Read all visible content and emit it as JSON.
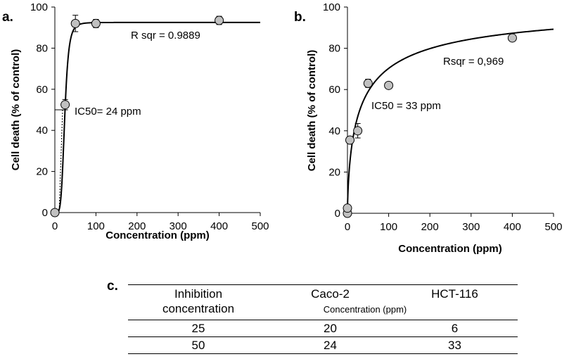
{
  "chart_data": [
    {
      "panel": "a.",
      "type": "scatter",
      "xlabel": "Concentration (ppm)",
      "ylabel": "Cell death (% of control)",
      "xlim": [
        0,
        500
      ],
      "ylim": [
        0,
        100
      ],
      "xticks": [
        0,
        100,
        200,
        300,
        400,
        500
      ],
      "yticks": [
        0,
        20,
        40,
        60,
        80,
        100
      ],
      "points": [
        {
          "x": 0,
          "y": 0,
          "err": 0
        },
        {
          "x": 25,
          "y": 52.5,
          "err": 2.5
        },
        {
          "x": 50,
          "y": 92,
          "err": 4
        },
        {
          "x": 100,
          "y": 92,
          "err": 2
        },
        {
          "x": 400,
          "y": 93.5,
          "err": 2
        }
      ],
      "fit": {
        "model": "sigmoid",
        "top": 92.5,
        "ic50": 24,
        "hill": 5
      },
      "annotations": {
        "rsq": "R sqr = 0.9889",
        "ic50": "IC50= 24 ppm"
      }
    },
    {
      "panel": "b.",
      "type": "scatter",
      "xlabel": "Concentration (ppm)",
      "ylabel": "Cell death (% of control)",
      "xlim": [
        0,
        500
      ],
      "ylim": [
        0,
        100
      ],
      "xticks": [
        0,
        100,
        200,
        300,
        400,
        500
      ],
      "yticks": [
        0,
        20,
        40,
        60,
        80,
        100
      ],
      "points": [
        {
          "x": 0,
          "y": 0,
          "err": 0
        },
        {
          "x": 0,
          "y": 2.5,
          "err": 0
        },
        {
          "x": 6,
          "y": 35.5,
          "err": 0
        },
        {
          "x": 25,
          "y": 40,
          "err": 3.5
        },
        {
          "x": 50,
          "y": 63,
          "err": 2
        },
        {
          "x": 100,
          "y": 62,
          "err": 1
        },
        {
          "x": 400,
          "y": 85,
          "err": 0
        }
      ],
      "fit": {
        "model": "hill",
        "top": 103.5,
        "ic50": 33,
        "hill": 0.675
      },
      "annotations": {
        "rsq": "Rsqr = 0,969",
        "ic50": "IC50 = 33 ppm"
      }
    }
  ],
  "table": {
    "letter": "c.",
    "headers": {
      "col1_line1": "Inhibition",
      "col1_line2": "concentration",
      "col2": "Caco-2",
      "col3": "HCT-116",
      "unit": "Concentration  (ppm)"
    },
    "rows": [
      {
        "inhibition": "25",
        "caco2": "20",
        "hct116": "6"
      },
      {
        "inhibition": "50",
        "caco2": "24",
        "hct116": "33"
      }
    ]
  },
  "style": {
    "marker_fill": "#c0c0c0",
    "line_color": "#000000"
  }
}
